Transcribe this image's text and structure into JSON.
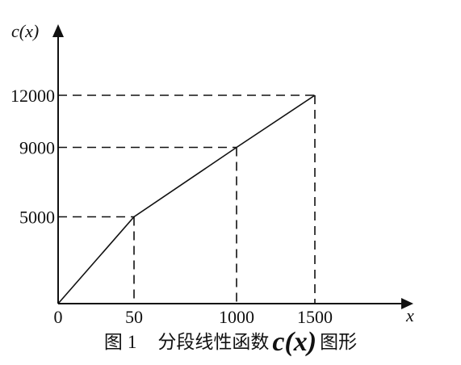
{
  "chart_data": {
    "type": "line",
    "xlabel": "x",
    "ylabel": "c(x)",
    "points": [
      {
        "x": 0,
        "y": 0
      },
      {
        "x": 50,
        "y": 5000
      },
      {
        "x": 1000,
        "y": 9000
      },
      {
        "x": 1500,
        "y": 12000
      }
    ],
    "x_tick_labels": [
      "0",
      "50",
      "1000",
      "1500"
    ],
    "y_tick_labels": [
      "5000",
      "9000",
      "12000"
    ],
    "dashed_guides": true,
    "grid": false
  },
  "caption": {
    "figure_label": "图",
    "figure_number": "1",
    "text_before": "分段线性函数",
    "function": "c(x)",
    "text_after": "图形"
  }
}
